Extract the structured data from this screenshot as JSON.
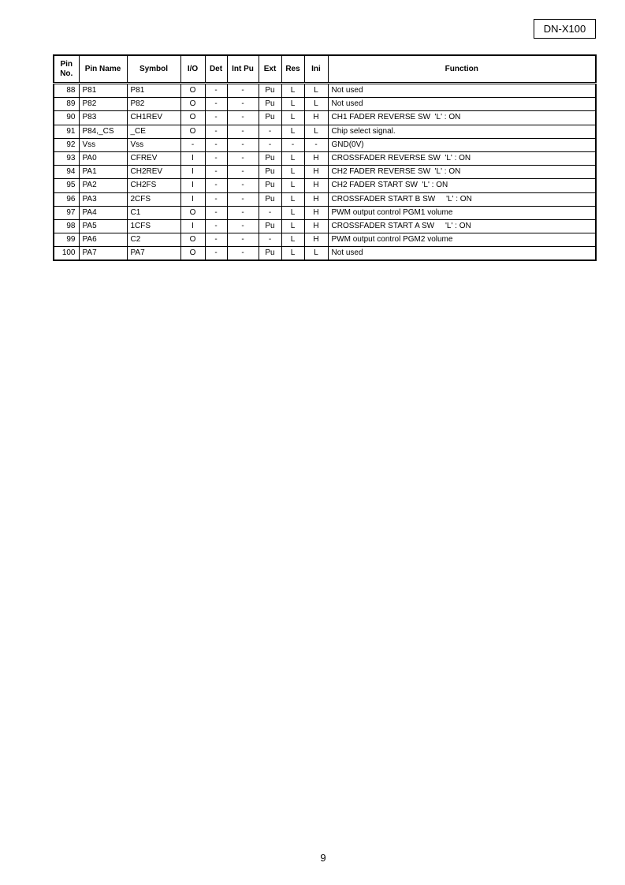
{
  "header": {
    "model": "DN-X100"
  },
  "table": {
    "columns": [
      "Pin No.",
      "Pin Name",
      "Symbol",
      "I/O",
      "Det",
      "Int Pu",
      "Ext",
      "Res",
      "Ini",
      "Function"
    ],
    "rows": [
      [
        "88",
        "P81",
        "P81",
        "O",
        "-",
        "-",
        "Pu",
        "L",
        "L",
        "Not used"
      ],
      [
        "89",
        "P82",
        "P82",
        "O",
        "-",
        "-",
        "Pu",
        "L",
        "L",
        "Not used"
      ],
      [
        "90",
        "P83",
        "CH1REV",
        "O",
        "-",
        "-",
        "Pu",
        "L",
        "H",
        "CH1 FADER REVERSE SW  'L' : ON"
      ],
      [
        "91",
        "P84,_CS",
        "_CE",
        "O",
        "-",
        "-",
        "-",
        "L",
        "L",
        "Chip select signal."
      ],
      [
        "92",
        "Vss",
        "Vss",
        "-",
        "-",
        "-",
        "-",
        "-",
        "-",
        "GND(0V)"
      ],
      [
        "93",
        "PA0",
        "CFREV",
        "I",
        "-",
        "-",
        "Pu",
        "L",
        "H",
        "CROSSFADER REVERSE SW  'L' : ON"
      ],
      [
        "94",
        "PA1",
        "CH2REV",
        "I",
        "-",
        "-",
        "Pu",
        "L",
        "H",
        "CH2 FADER REVERSE SW  'L' : ON"
      ],
      [
        "95",
        "PA2",
        "CH2FS",
        "I",
        "-",
        "-",
        "Pu",
        "L",
        "H",
        "CH2 FADER START SW  'L' : ON"
      ],
      [
        "96",
        "PA3",
        "2CFS",
        "I",
        "-",
        "-",
        "Pu",
        "L",
        "H",
        "CROSSFADER START B SW     'L' : ON"
      ],
      [
        "97",
        "PA4",
        "C1",
        "O",
        "-",
        "-",
        "-",
        "L",
        "H",
        "PWM output control PGM1 volume"
      ],
      [
        "98",
        "PA5",
        "1CFS",
        "I",
        "-",
        "-",
        "Pu",
        "L",
        "H",
        "CROSSFADER START A SW     'L' : ON"
      ],
      [
        "99",
        "PA6",
        "C2",
        "O",
        "-",
        "-",
        "-",
        "L",
        "H",
        "PWM output control PGM2 volume"
      ],
      [
        "100",
        "PA7",
        "PA7",
        "O",
        "-",
        "-",
        "Pu",
        "L",
        "L",
        "Not used"
      ]
    ]
  },
  "footer": {
    "page_number": "9"
  }
}
